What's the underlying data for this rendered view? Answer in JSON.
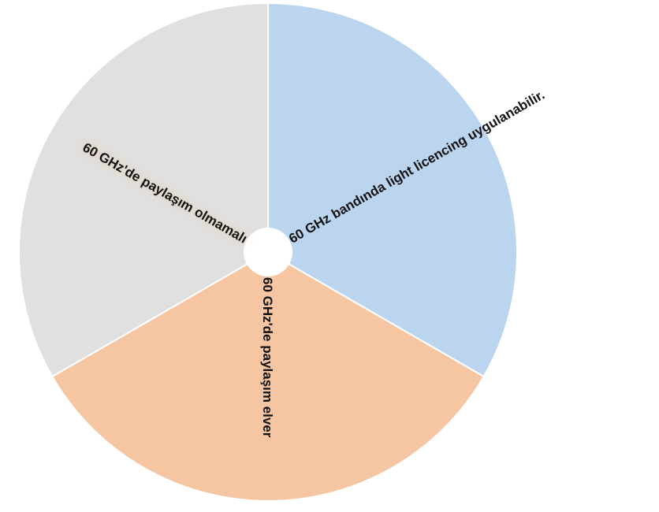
{
  "chart_data": {
    "type": "pie",
    "donut": true,
    "start_angle_deg": 0,
    "direction": "clockwise",
    "slices": [
      {
        "label": "60 GHz bandında light licencing uygulanabilir.",
        "value": 1,
        "color": "#bcd5ef"
      },
      {
        "label": "60 GHz'de paylaşım elver",
        "value": 1,
        "color": "#f6c5a1"
      },
      {
        "label": "60 GHz'de paylaşım olmamalı",
        "value": 1,
        "color": "#e0e0e0"
      }
    ],
    "label_glow_color": "#f7b06a",
    "legend": "none"
  }
}
